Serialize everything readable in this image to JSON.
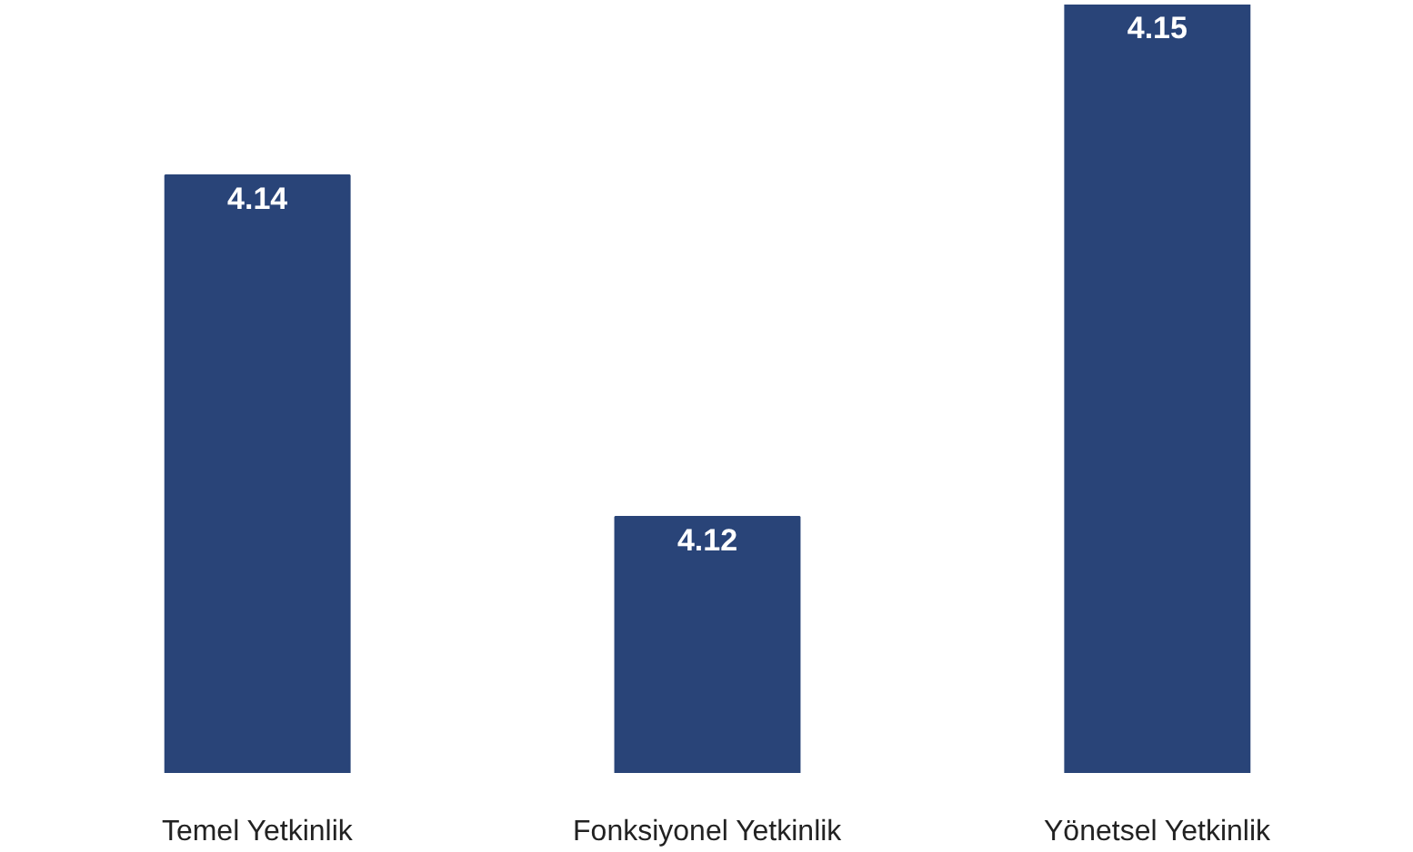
{
  "chart_data": {
    "type": "bar",
    "categories": [
      "Temel Yetkinlik",
      "Fonksiyonel Yetkinlik",
      "Yönetsel Yetkinlik"
    ],
    "values": [
      4.14,
      4.12,
      4.15
    ],
    "color": "#294478",
    "ylim": [
      4.105,
      4.15
    ],
    "data_labels": true,
    "grid": false
  }
}
